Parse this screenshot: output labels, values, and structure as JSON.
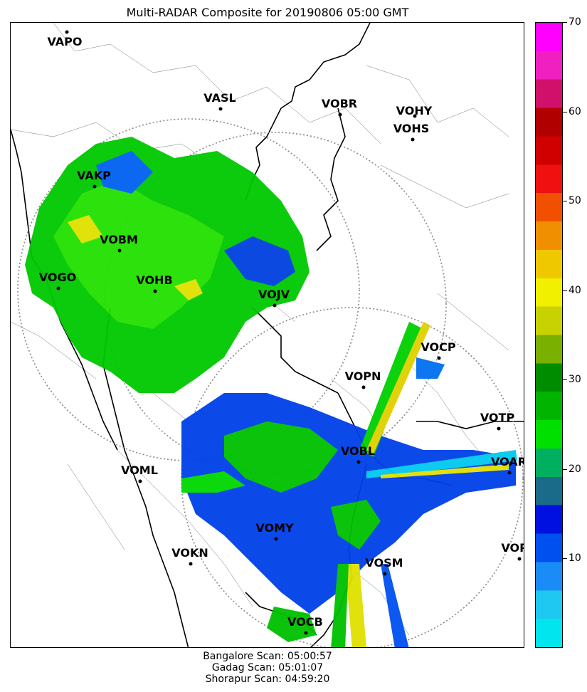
{
  "title": "Multi-RADAR Composite for 20190806 05:00 GMT",
  "stations": [
    {
      "code": "VAPO"
    },
    {
      "code": "VASL"
    },
    {
      "code": "VOBR"
    },
    {
      "code": "VOHY"
    },
    {
      "code": "VOHS"
    },
    {
      "code": "VAKP"
    },
    {
      "code": "VOBM"
    },
    {
      "code": "VOGO"
    },
    {
      "code": "VOHB"
    },
    {
      "code": "VOJV"
    },
    {
      "code": "VOCP"
    },
    {
      "code": "VOPN"
    },
    {
      "code": "VOTP"
    },
    {
      "code": "VOBL"
    },
    {
      "code": "VOAR"
    },
    {
      "code": "VOML"
    },
    {
      "code": "VOMY"
    },
    {
      "code": "VOKN"
    },
    {
      "code": "VOPC"
    },
    {
      "code": "VOSM"
    },
    {
      "code": "VOCB"
    }
  ],
  "colorbar": {
    "min": 0,
    "max": 70,
    "ticks": [
      "10",
      "20",
      "30",
      "40",
      "50",
      "60",
      "70"
    ],
    "colors": [
      "#00e5ee",
      "#1ec8f0",
      "#1a8cf5",
      "#0050f0",
      "#0010e0",
      "#1a6a8a",
      "#00b060",
      "#00e000",
      "#00b400",
      "#008c00",
      "#7ab000",
      "#c8d200",
      "#f0f000",
      "#f0c800",
      "#f09000",
      "#f05000",
      "#f01010",
      "#d00000",
      "#b00000",
      "#d0106a",
      "#f020c0",
      "#ff00ff"
    ]
  },
  "footer": [
    "Bangalore Scan: 05:00:57",
    "Gadag Scan: 05:01:07",
    "Shorapur Scan: 04:59:20"
  ]
}
